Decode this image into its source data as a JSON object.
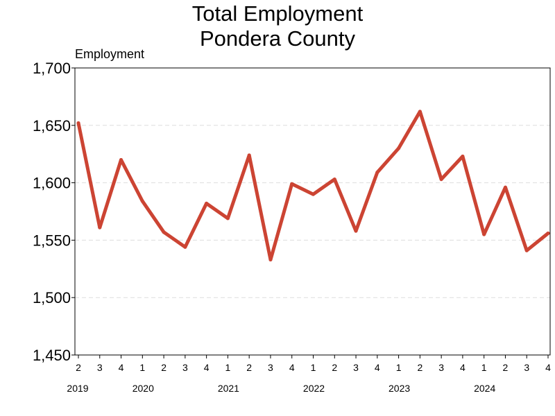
{
  "chart_data": {
    "type": "line",
    "title": [
      "Total Employment",
      "Pondera County"
    ],
    "ylabel": "Employment",
    "ylim": [
      1450,
      1700
    ],
    "yticks": [
      1450,
      1500,
      1550,
      1600,
      1650,
      1700
    ],
    "ytick_labels": [
      "1,450",
      "1,500",
      "1,550",
      "1,600",
      "1,650",
      "1,700"
    ],
    "grid": "horizontal dashed",
    "line_color": "#cc4433",
    "x": [
      "2019 Q2",
      "2019 Q3",
      "2019 Q4",
      "2020 Q1",
      "2020 Q2",
      "2020 Q3",
      "2020 Q4",
      "2021 Q1",
      "2021 Q2",
      "2021 Q3",
      "2021 Q4",
      "2022 Q1",
      "2022 Q2",
      "2022 Q3",
      "2022 Q4",
      "2023 Q1",
      "2023 Q2",
      "2023 Q3",
      "2023 Q4",
      "2024 Q1",
      "2024 Q2",
      "2024 Q3",
      "2024 Q4"
    ],
    "quarter_labels": [
      "2",
      "3",
      "4",
      "1",
      "2",
      "3",
      "4",
      "1",
      "2",
      "3",
      "4",
      "1",
      "2",
      "3",
      "4",
      "1",
      "2",
      "3",
      "4",
      "1",
      "2",
      "3",
      "4"
    ],
    "year_labels": [
      {
        "year": "2019",
        "index": 0
      },
      {
        "year": "2020",
        "index": 3
      },
      {
        "year": "2021",
        "index": 7
      },
      {
        "year": "2022",
        "index": 11
      },
      {
        "year": "2023",
        "index": 15
      },
      {
        "year": "2024",
        "index": 19
      }
    ],
    "values": [
      1652,
      1561,
      1620,
      1584,
      1557,
      1544,
      1582,
      1569,
      1624,
      1533,
      1599,
      1590,
      1603,
      1558,
      1609,
      1630,
      1662,
      1603,
      1623,
      1555,
      1596,
      1541,
      1556
    ]
  }
}
